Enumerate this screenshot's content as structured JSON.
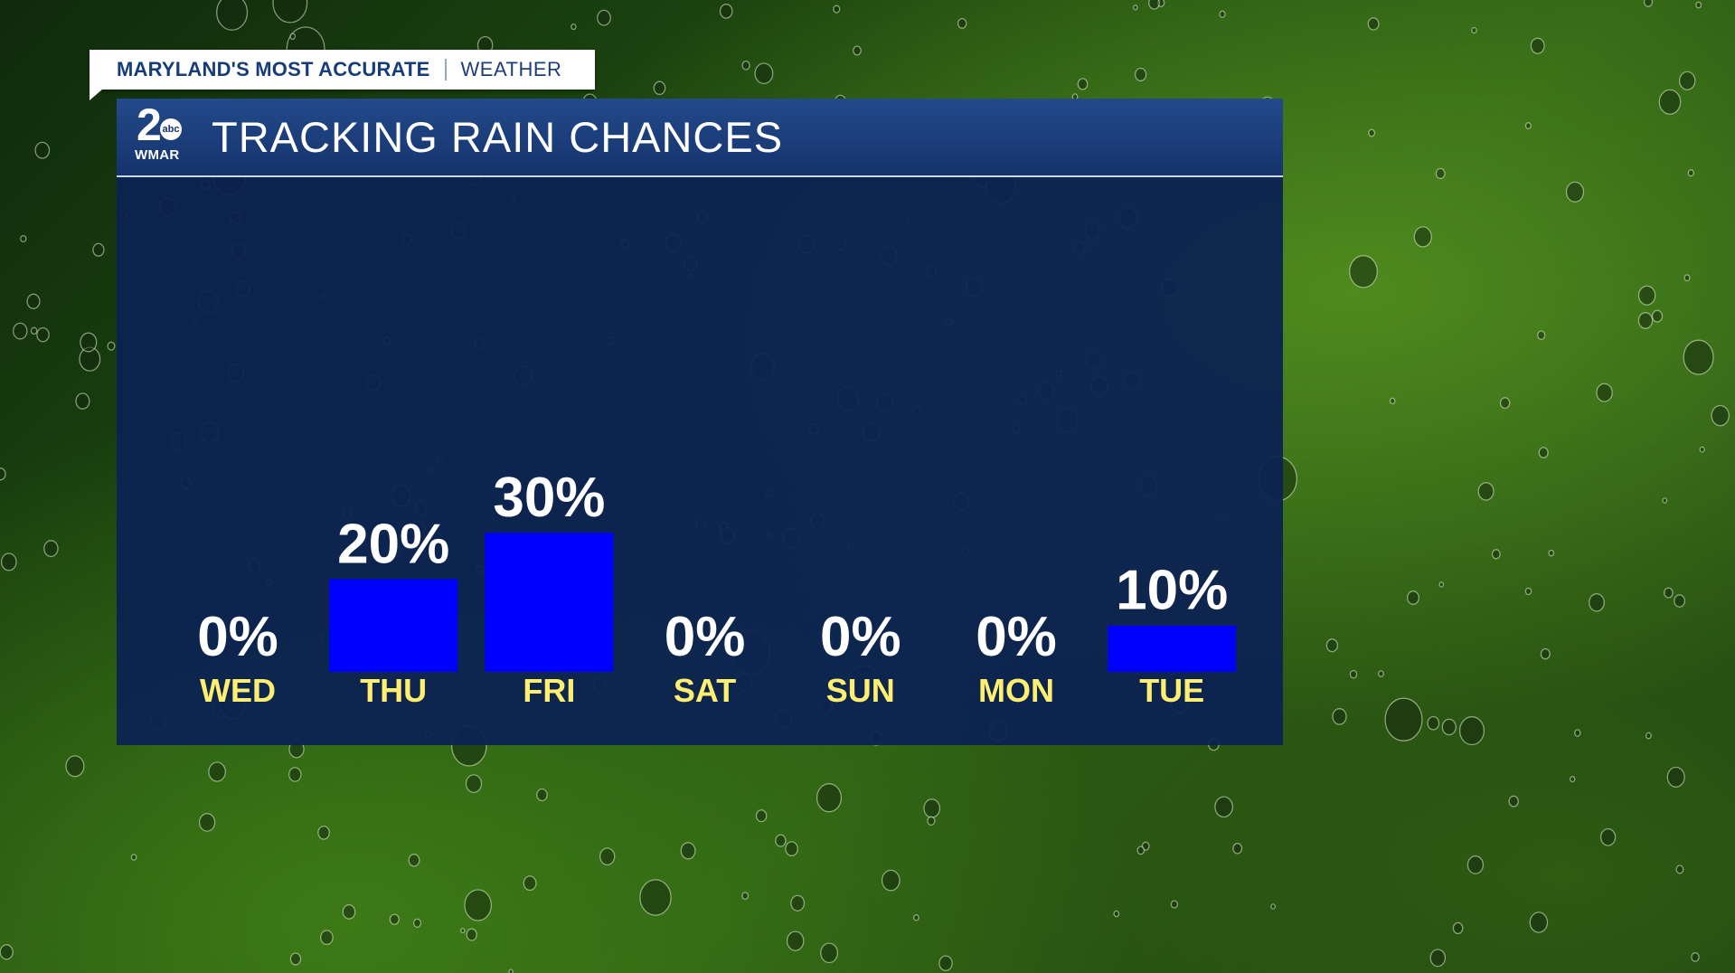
{
  "tab": {
    "brand": "MARYLAND'S MOST ACCURATE",
    "section": "WEATHER"
  },
  "panel": {
    "logo_number": "2",
    "logo_network": "abc",
    "logo_callsign": "WMAR",
    "title": "TRACKING RAIN CHANCES"
  },
  "colors": {
    "bar": "#0000ff",
    "day_label": "#ffef70",
    "value_label": "#ffffff",
    "panel": "#0c2252"
  },
  "chart_data": {
    "type": "bar",
    "title": "TRACKING RAIN CHANCES",
    "categories": [
      "WED",
      "THU",
      "FRI",
      "SAT",
      "SUN",
      "MON",
      "TUE"
    ],
    "values": [
      0,
      20,
      30,
      0,
      0,
      0,
      10
    ],
    "value_labels": [
      "0%",
      "20%",
      "30%",
      "0%",
      "0%",
      "0%",
      "10%"
    ],
    "unit": "%",
    "ylim": [
      0,
      100
    ],
    "grid": false,
    "legend": "none"
  }
}
